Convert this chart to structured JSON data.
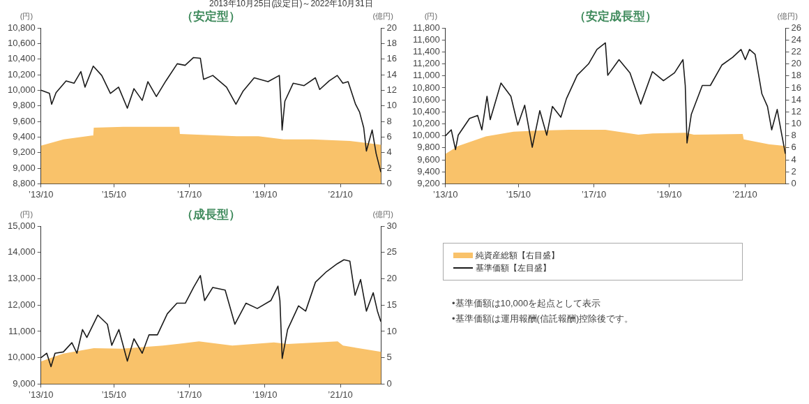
{
  "chart_data": [
    {
      "type": "line",
      "title": "（安定型）",
      "subtitle": "2013年10月25日(設定日)～2022年10月31日",
      "ylabel": "(円)",
      "y2label": "(億円)",
      "marker": "none",
      "grid": false,
      "xlim": [
        "2013-10-25",
        "2022-10-31"
      ],
      "xticks": [
        {
          "value": "2013-10-25",
          "label": "’13/10"
        },
        {
          "value": "2015-10",
          "label": "’15/10"
        },
        {
          "value": "2017-10",
          "label": "’17/10"
        },
        {
          "value": "2019-10",
          "label": "’19/10"
        },
        {
          "value": "2021-10",
          "label": "’21/10"
        }
      ],
      "ylim": [
        8800,
        10800
      ],
      "yticks": [
        {
          "value": 8800,
          "label": "8,800"
        },
        {
          "value": 9000,
          "label": "9,000"
        },
        {
          "value": 9200,
          "label": "9,200"
        },
        {
          "value": 9400,
          "label": "9,400"
        },
        {
          "value": 9600,
          "label": "9,600"
        },
        {
          "value": 9800,
          "label": "9,800"
        },
        {
          "value": 10000,
          "label": "10,000"
        },
        {
          "value": 10200,
          "label": "10,200"
        },
        {
          "value": 10400,
          "label": "10,400"
        },
        {
          "value": 10600,
          "label": "10,600"
        },
        {
          "value": 10800,
          "label": "10,800"
        }
      ],
      "y2lim": [
        0,
        20
      ],
      "y2ticks": [
        0,
        2,
        4,
        6,
        8,
        10,
        12,
        14,
        16,
        18,
        20
      ],
      "series": [
        {
          "type": "area",
          "axis": "y2",
          "color": "#f9c26a",
          "x": [
            "2013-10-25",
            "2014-06-01",
            "2015-03-01",
            "2015-03-15",
            "2015-03-20",
            "2016-01-01",
            "2017-06-25",
            "2017-07-01",
            "2019-01-01",
            "2019-08-01",
            "2020-04-01",
            "2021-01-01",
            "2022-01-01",
            "2022-07-01",
            "2022-10-31"
          ],
          "values": [
            4.9,
            5.7,
            6.2,
            6.2,
            7.2,
            7.3,
            7.3,
            6.4,
            6.1,
            6.1,
            5.7,
            5.7,
            5.5,
            5.2,
            5.0
          ]
        },
        {
          "type": "line",
          "color": "#1a1a1a",
          "x": [
            "2013-10-25",
            "2014-01-15",
            "2014-02-05",
            "2014-03-20",
            "2014-06-25",
            "2014-09-10",
            "2014-11-15",
            "2014-12-25",
            "2015-03-15",
            "2015-06-05",
            "2015-08-28",
            "2015-11-15",
            "2016-02-08",
            "2016-04-12",
            "2016-07-01",
            "2016-08-25",
            "2016-11-15",
            "2017-02-15",
            "2017-06-05",
            "2017-08-20",
            "2017-11-10",
            "2018-01-15",
            "2018-02-15",
            "2018-05-15",
            "2018-09-25",
            "2018-12-25",
            "2019-03-05",
            "2019-06-20",
            "2019-11-01",
            "2020-02-18",
            "2020-03-10",
            "2020-03-16",
            "2020-04-12",
            "2020-07-01",
            "2020-10-15",
            "2021-02-01",
            "2021-03-15",
            "2021-06-15",
            "2021-09-01",
            "2021-10-25",
            "2021-12-15",
            "2022-02-25",
            "2022-04-05",
            "2022-05-15",
            "2022-06-10",
            "2022-08-05",
            "2022-09-12",
            "2022-10-28"
          ],
          "values": [
            10000,
            9960,
            9820,
            9970,
            10120,
            10090,
            10240,
            10040,
            10310,
            10190,
            9960,
            10040,
            9770,
            10020,
            9870,
            10110,
            9920,
            10120,
            10340,
            10320,
            10420,
            10410,
            10140,
            10190,
            10040,
            9820,
            9990,
            10160,
            10110,
            10190,
            9690,
            9490,
            9860,
            10090,
            10060,
            10160,
            10010,
            10120,
            10190,
            10090,
            10110,
            9820,
            9720,
            9520,
            9220,
            9490,
            9190,
            8950
          ]
        }
      ]
    },
    {
      "type": "line",
      "title": "（安定成長型）",
      "ylabel": "(円)",
      "y2label": "(億円)",
      "marker": "none",
      "grid": false,
      "xlim": [
        "2013-10-25",
        "2022-10-31"
      ],
      "xticks": [
        {
          "value": "2013-10-25",
          "label": "’13/10"
        },
        {
          "value": "2015-10",
          "label": "’15/10"
        },
        {
          "value": "2017-10",
          "label": "’17/10"
        },
        {
          "value": "2019-10",
          "label": "’19/10"
        },
        {
          "value": "2021-10",
          "label": "’21/10"
        }
      ],
      "ylim": [
        9200,
        11800
      ],
      "yticks": [
        {
          "value": 9200,
          "label": "9,200"
        },
        {
          "value": 9400,
          "label": "9,400"
        },
        {
          "value": 9600,
          "label": "9,600"
        },
        {
          "value": 9800,
          "label": "9,800"
        },
        {
          "value": 10000,
          "label": "10,000"
        },
        {
          "value": 10200,
          "label": "10,200"
        },
        {
          "value": 10400,
          "label": "10,400"
        },
        {
          "value": 10600,
          "label": "10,600"
        },
        {
          "value": 10800,
          "label": "10,800"
        },
        {
          "value": 11000,
          "label": "11,000"
        },
        {
          "value": 11200,
          "label": "11,200"
        },
        {
          "value": 11400,
          "label": "11,400"
        },
        {
          "value": 11600,
          "label": "11,600"
        },
        {
          "value": 11800,
          "label": "11,800"
        }
      ],
      "y2lim": [
        0,
        26
      ],
      "y2ticks": [
        0,
        2,
        4,
        6,
        8,
        10,
        12,
        14,
        16,
        18,
        20,
        22,
        24,
        26
      ],
      "series": [
        {
          "type": "area",
          "axis": "y2",
          "color": "#f9c26a",
          "x": [
            "2013-10-25",
            "2014-02-25",
            "2014-11-20",
            "2015-08-15",
            "2016-05-10",
            "2017-02-01",
            "2018-01-20",
            "2018-12-05",
            "2019-04-20",
            "2020-03-05",
            "2020-05-25",
            "2021-09-10",
            "2021-09-20",
            "2022-05-20",
            "2022-10-31"
          ],
          "values": [
            5.0,
            6.3,
            7.9,
            8.7,
            8.9,
            9.0,
            9.0,
            8.2,
            8.4,
            8.5,
            8.2,
            8.3,
            7.4,
            6.6,
            6.3
          ]
        },
        {
          "type": "line",
          "color": "#1a1a1a",
          "x": [
            "2013-10-25",
            "2013-12-20",
            "2014-01-30",
            "2014-02-25",
            "2014-06-15",
            "2014-09-01",
            "2014-10-12",
            "2014-12-01",
            "2015-01-01",
            "2015-04-15",
            "2015-07-20",
            "2015-09-25",
            "2015-12-01",
            "2016-02-12",
            "2016-04-25",
            "2016-07-01",
            "2016-08-25",
            "2016-11-15",
            "2017-01-08",
            "2017-04-22",
            "2017-08-10",
            "2017-10-30",
            "2018-01-20",
            "2018-02-12",
            "2018-06-01",
            "2018-09-15",
            "2018-12-28",
            "2019-04-20",
            "2019-08-05",
            "2019-11-20",
            "2020-02-10",
            "2020-03-03",
            "2020-03-20",
            "2020-05-01",
            "2020-08-15",
            "2020-11-01",
            "2021-02-20",
            "2021-06-05",
            "2021-08-25",
            "2021-10-05",
            "2021-11-15",
            "2022-01-08",
            "2022-03-15",
            "2022-05-08",
            "2022-06-18",
            "2022-08-10",
            "2022-09-20",
            "2022-10-28"
          ],
          "values": [
            10000,
            10100,
            9770,
            10010,
            10290,
            10340,
            10100,
            10660,
            10270,
            10880,
            10660,
            10180,
            10510,
            9810,
            10420,
            10010,
            10490,
            10310,
            10620,
            11010,
            11200,
            11440,
            11550,
            11010,
            11270,
            11050,
            10530,
            11070,
            10920,
            11050,
            11270,
            10840,
            9880,
            10360,
            10840,
            10840,
            11180,
            11310,
            11440,
            11270,
            11440,
            11360,
            10700,
            10490,
            10100,
            10440,
            10050,
            9700
          ]
        }
      ]
    },
    {
      "type": "line",
      "title": "（成長型）",
      "ylabel": "(円)",
      "y2label": "(億円)",
      "marker": "none",
      "grid": false,
      "legend": "right",
      "annotations": [
        "•基準価額は10,000を起点として表示",
        "•基準価額は運用報酬(信託報酬)控除後です。"
      ],
      "xlim": [
        "2013-10-25",
        "2022-10-31"
      ],
      "xticks": [
        {
          "value": "2013-10-25",
          "label": "’13/10"
        },
        {
          "value": "2015-10",
          "label": "’15/10"
        },
        {
          "value": "2017-10",
          "label": "’17/10"
        },
        {
          "value": "2019-10",
          "label": "’19/10"
        },
        {
          "value": "2021-10",
          "label": "’21/10"
        }
      ],
      "ylim": [
        9000,
        15000
      ],
      "yticks": [
        {
          "value": 9000,
          "label": "9,000"
        },
        {
          "value": 10000,
          "label": "10,000"
        },
        {
          "value": 11000,
          "label": "11,000"
        },
        {
          "value": 12000,
          "label": "12,000"
        },
        {
          "value": 13000,
          "label": "13,000"
        },
        {
          "value": 14000,
          "label": "14,000"
        },
        {
          "value": 15000,
          "label": "15,000"
        }
      ],
      "y2lim": [
        0,
        30
      ],
      "y2ticks": [
        0,
        5,
        10,
        15,
        20,
        25,
        30
      ],
      "series": [
        {
          "type": "area",
          "axis": "y2",
          "name": "純資産総額【右目盛】",
          "color": "#f9c26a",
          "x": [
            "2013-10-25",
            "2014-05-30",
            "2015-03-20",
            "2015-12-15",
            "2017-01-18",
            "2018-01-01",
            "2018-11-20",
            "2019-12-28",
            "2020-05-08",
            "2021-09-05",
            "2021-10-27",
            "2022-10-31"
          ],
          "values": [
            4.3,
            5.8,
            6.8,
            6.7,
            7.3,
            8.1,
            7.3,
            7.9,
            7.6,
            8.1,
            7.3,
            6.1
          ]
        },
        {
          "type": "line",
          "name": "基準価額【左目盛】",
          "color": "#1a1a1a",
          "x": [
            "2013-10-25",
            "2013-12-20",
            "2014-01-30",
            "2014-03-10",
            "2014-05-30",
            "2014-08-20",
            "2014-10-08",
            "2014-12-01",
            "2015-01-12",
            "2015-04-28",
            "2015-07-30",
            "2015-09-10",
            "2015-11-18",
            "2016-02-08",
            "2016-04-12",
            "2016-07-01",
            "2016-09-05",
            "2016-11-25",
            "2017-03-01",
            "2017-06-02",
            "2017-08-22",
            "2017-11-10",
            "2018-01-15",
            "2018-02-25",
            "2018-05-15",
            "2018-09-12",
            "2018-12-15",
            "2019-04-01",
            "2019-07-20",
            "2019-11-28",
            "2020-02-05",
            "2020-02-24",
            "2020-03-17",
            "2020-05-08",
            "2020-08-22",
            "2020-10-30",
            "2021-02-02",
            "2021-05-20",
            "2021-09-01",
            "2021-11-05",
            "2022-01-01",
            "2022-02-20",
            "2022-04-15",
            "2022-06-10",
            "2022-08-15",
            "2022-09-25",
            "2022-10-28"
          ],
          "values": [
            10000,
            10170,
            9660,
            10170,
            10220,
            10570,
            10170,
            11070,
            10770,
            11620,
            11270,
            10470,
            11070,
            9870,
            10720,
            10170,
            10870,
            10870,
            11670,
            12070,
            12070,
            12670,
            13120,
            12170,
            12670,
            12570,
            11270,
            12070,
            11870,
            12170,
            12720,
            12170,
            9970,
            11070,
            11970,
            11770,
            12870,
            13270,
            13570,
            13720,
            13670,
            12370,
            12970,
            11770,
            12470,
            11770,
            11370
          ]
        }
      ]
    }
  ]
}
